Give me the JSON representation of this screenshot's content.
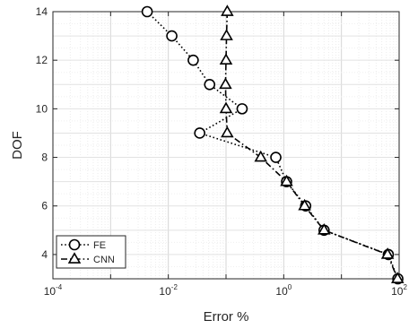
{
  "chart_data": {
    "type": "line",
    "title": "",
    "xlabel": "Error %",
    "ylabel": "DOF",
    "xscale": "log",
    "xlim": [
      0.0001,
      100
    ],
    "ylim": [
      3,
      14
    ],
    "grid": true,
    "legend_position": "bottom-left",
    "x_tick_labels": [
      {
        "value": 0.0001,
        "base": "10",
        "exp": "-4"
      },
      {
        "value": 0.01,
        "base": "10",
        "exp": "-2"
      },
      {
        "value": 1,
        "base": "10",
        "exp": "0"
      },
      {
        "value": 100,
        "base": "10",
        "exp": "2"
      }
    ],
    "y_ticks": [
      4,
      6,
      8,
      10,
      12,
      14
    ],
    "series": [
      {
        "name": "FE",
        "marker": "circle",
        "line_style": "dotted",
        "color": "#000000",
        "x": [
          0.0043,
          0.0115,
          0.027,
          0.052,
          0.19,
          0.035,
          0.73,
          1.12,
          2.4,
          5.0,
          65.0,
          95.0
        ],
        "y": [
          14,
          13,
          12,
          11,
          10,
          9,
          8,
          7,
          6,
          5,
          4,
          3
        ]
      },
      {
        "name": "CNN",
        "marker": "triangle",
        "line_style": "dash-dot",
        "color": "#000000",
        "x": [
          0.105,
          0.102,
          0.1,
          0.098,
          0.1,
          0.105,
          0.4,
          1.12,
          2.3,
          5.0,
          63.0,
          94.0
        ],
        "y": [
          14,
          13,
          12,
          11,
          10,
          9,
          8,
          7,
          6,
          5,
          4,
          3
        ]
      }
    ]
  }
}
